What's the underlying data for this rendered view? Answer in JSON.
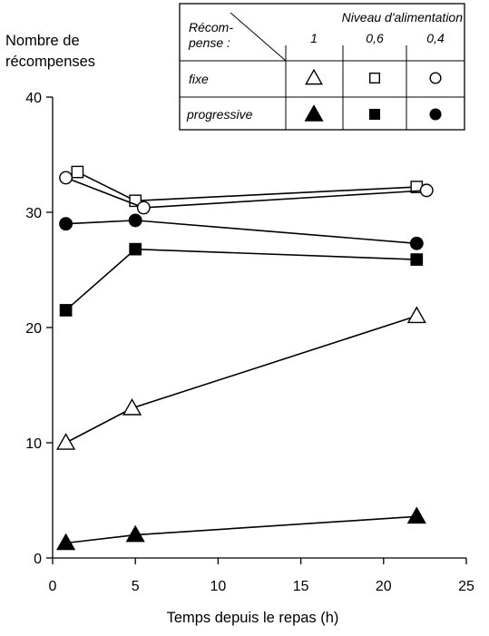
{
  "chart_data": {
    "type": "line",
    "title": "",
    "xlabel": "Temps depuis le repas (h)",
    "ylabel_lines": [
      "Nombre de",
      "récompenses"
    ],
    "xlim": [
      0,
      25
    ],
    "ylim": [
      0,
      40
    ],
    "xticks": [
      "0",
      "5",
      "10",
      "15",
      "20",
      "25"
    ],
    "yticks": [
      "0",
      "10",
      "20",
      "30",
      "40"
    ],
    "grid": false,
    "legend": {
      "placement": "top-right",
      "row_header_line1": "Récom-",
      "row_header_line2": "pense :",
      "col_header": "Niveau d'alimentation",
      "levels": [
        "1",
        "0,6",
        "0,4"
      ],
      "rows": [
        "fixe",
        "progressive"
      ]
    },
    "series": [
      {
        "reward": "fixe",
        "level": "1",
        "marker": "triangle",
        "filled": false,
        "x": [
          0.8,
          4.8,
          22.0
        ],
        "y": [
          10.0,
          13.0,
          21.0
        ]
      },
      {
        "reward": "fixe",
        "level": "0,6",
        "marker": "square",
        "filled": false,
        "x": [
          1.5,
          5.0,
          22.0
        ],
        "y": [
          33.5,
          31.0,
          32.2
        ]
      },
      {
        "reward": "fixe",
        "level": "0,4",
        "marker": "circle",
        "filled": false,
        "x": [
          0.8,
          5.5,
          22.6
        ],
        "y": [
          33.0,
          30.4,
          31.9
        ]
      },
      {
        "reward": "progressive",
        "level": "1",
        "marker": "triangle",
        "filled": true,
        "x": [
          0.8,
          5.0,
          22.0
        ],
        "y": [
          1.3,
          2.0,
          3.6
        ]
      },
      {
        "reward": "progressive",
        "level": "0,6",
        "marker": "square",
        "filled": true,
        "x": [
          0.8,
          5.0,
          22.0
        ],
        "y": [
          21.5,
          26.8,
          25.9
        ]
      },
      {
        "reward": "progressive",
        "level": "0,4",
        "marker": "circle",
        "filled": true,
        "x": [
          0.8,
          5.0,
          22.0
        ],
        "y": [
          29.0,
          29.3,
          27.3
        ]
      }
    ]
  }
}
